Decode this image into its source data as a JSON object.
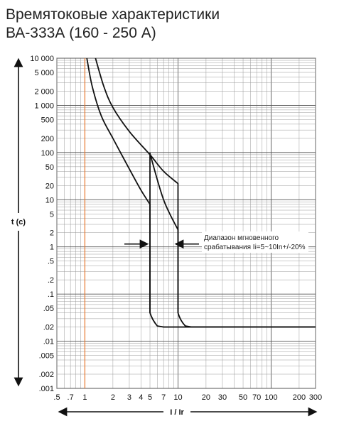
{
  "chart_data": {
    "type": "line",
    "title": "Времятоковые характеристики",
    "subtitle": "ВА-333А (160 - 250 А)",
    "xlabel": "I / Ir",
    "ylabel": "t (c)",
    "xscale": "log",
    "yscale": "log",
    "xlim": [
      0.5,
      300
    ],
    "ylim": [
      0.001,
      10000
    ],
    "grid": true,
    "x_ticks": [
      {
        "value": 0.5,
        "label": ".5"
      },
      {
        "value": 0.7,
        "label": ".7"
      },
      {
        "value": 1,
        "label": "1"
      },
      {
        "value": 2,
        "label": "2"
      },
      {
        "value": 3,
        "label": "3"
      },
      {
        "value": 4,
        "label": "4"
      },
      {
        "value": 5,
        "label": "5"
      },
      {
        "value": 7,
        "label": "7"
      },
      {
        "value": 10,
        "label": "10"
      },
      {
        "value": 20,
        "label": "20"
      },
      {
        "value": 30,
        "label": "30"
      },
      {
        "value": 50,
        "label": "50"
      },
      {
        "value": 70,
        "label": "70"
      },
      {
        "value": 100,
        "label": "100"
      },
      {
        "value": 200,
        "label": "200"
      },
      {
        "value": 300,
        "label": "300"
      }
    ],
    "y_ticks": [
      {
        "value": 10000,
        "label": "10 000"
      },
      {
        "value": 5000,
        "label": "5 000"
      },
      {
        "value": 2000,
        "label": "2 000"
      },
      {
        "value": 1000,
        "label": "1 000"
      },
      {
        "value": 500,
        "label": "500"
      },
      {
        "value": 200,
        "label": "200"
      },
      {
        "value": 100,
        "label": "100"
      },
      {
        "value": 50,
        "label": "50"
      },
      {
        "value": 20,
        "label": "20"
      },
      {
        "value": 10,
        "label": "10"
      },
      {
        "value": 5,
        "label": "5"
      },
      {
        "value": 2,
        "label": "2"
      },
      {
        "value": 1,
        "label": "1"
      },
      {
        "value": 0.5,
        "label": ".5"
      },
      {
        "value": 0.2,
        "label": ".2"
      },
      {
        "value": 0.1,
        "label": ".1"
      },
      {
        "value": 0.05,
        "label": ".05"
      },
      {
        "value": 0.02,
        "label": ".02"
      },
      {
        "value": 0.01,
        "label": ".01"
      },
      {
        "value": 0.005,
        "label": ".005"
      },
      {
        "value": 0.002,
        "label": ".002"
      },
      {
        "value": 0.001,
        "label": ".001"
      }
    ],
    "reference_line": {
      "x": 1,
      "color": "#e8782e"
    },
    "series": [
      {
        "color": "#111111",
        "points": [
          [
            1.05,
            10000
          ],
          [
            1.2,
            2500
          ],
          [
            1.5,
            600
          ],
          [
            2,
            200
          ],
          [
            3,
            45
          ],
          [
            4,
            16
          ],
          [
            5,
            8
          ]
        ],
        "drop": {
          "x": 5,
          "bottom": 0.04
        },
        "tail": [
          [
            5.3,
            0.028
          ],
          [
            6,
            0.021
          ],
          [
            7,
            0.02
          ],
          [
            300,
            0.02
          ]
        ]
      },
      {
        "color": "#111111",
        "points": [
          [
            1.3,
            10000
          ],
          [
            1.6,
            2500
          ],
          [
            2,
            900
          ],
          [
            3,
            280
          ],
          [
            5,
            90
          ],
          [
            7,
            40
          ],
          [
            10,
            22
          ]
        ],
        "drop": {
          "x": 10,
          "bottom": 0.04
        },
        "tail": [
          [
            10.6,
            0.027
          ],
          [
            12,
            0.021
          ],
          [
            14,
            0.02
          ],
          [
            300,
            0.02
          ]
        ]
      },
      {
        "color": "#111111",
        "points": [
          [
            5,
            95
          ],
          [
            7,
            10
          ],
          [
            10,
            2.3
          ]
        ],
        "drop": {
          "x": 10,
          "bottom": 0.04
        },
        "tail": []
      },
      {
        "color": "#111111",
        "points": [
          [
            5,
            100
          ],
          [
            5,
            0.04
          ]
        ],
        "drop": null,
        "tail": []
      }
    ],
    "annotation": {
      "lines": [
        "Диапазон мгновенного",
        "срабатывания Ii=5~10In+/-20%"
      ]
    }
  }
}
